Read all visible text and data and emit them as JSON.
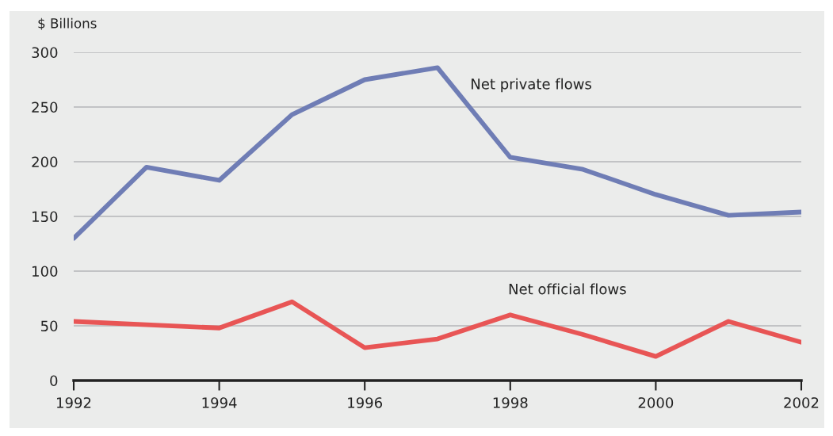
{
  "chart_data": {
    "type": "line",
    "ylabel": "$ Billions",
    "x": [
      1992,
      1993,
      1994,
      1995,
      1996,
      1997,
      1998,
      1999,
      2000,
      2001,
      2002
    ],
    "series": [
      {
        "name": "Net private flows",
        "color": "#6f7db5",
        "values": [
          130,
          195,
          183,
          243,
          275,
          286,
          204,
          193,
          170,
          151,
          154
        ]
      },
      {
        "name": "Net official flows",
        "color": "#e85555",
        "values": [
          54,
          51,
          48,
          72,
          30,
          38,
          60,
          42,
          22,
          54,
          35
        ]
      }
    ],
    "xlim": [
      1992,
      2002
    ],
    "xticks": [
      1992,
      1994,
      1996,
      1998,
      2000,
      2002
    ],
    "ylim": [
      0,
      300
    ],
    "yticks": [
      0,
      50,
      100,
      150,
      200,
      250,
      300
    ],
    "grid": "y",
    "legend": false,
    "marker": "none",
    "line_style": "solid"
  }
}
